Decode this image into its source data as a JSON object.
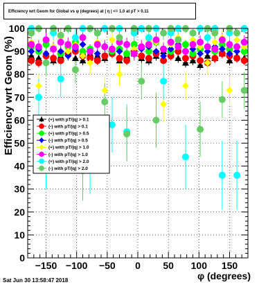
{
  "title": "Efficiency wrt Geom for Global vs φ (degrees) at | η | <= 1.0 at pT > 0.11",
  "datestamp": "Sat Jun 30 13:58:47 2018",
  "chart_data": {
    "type": "scatter",
    "title": "Efficiency wrt Geom for Global vs φ (degrees) at | η | <= 1.0 at pT > 0.11",
    "xlabel": "φ (degrees)",
    "ylabel": "Efficiency wrt Geom (%)",
    "xlim": [
      -180,
      180
    ],
    "ylim": [
      0,
      100
    ],
    "xticks": [
      -150,
      -100,
      -50,
      0,
      50,
      100,
      150
    ],
    "xtick_labels": [
      "−150",
      "−100",
      "−50",
      "0",
      "50",
      "100",
      "150"
    ],
    "yticks": [
      0,
      10,
      20,
      30,
      40,
      50,
      60,
      70,
      80,
      90,
      100
    ],
    "grid": true,
    "legend_position": "middle-left",
    "series": [
      {
        "name": "(+) with pT/|q| > 0.1",
        "marker": "triangle",
        "color": "#000000",
        "x": [
          -174,
          -162,
          -150,
          -138,
          -126,
          -114,
          -102,
          -90,
          -78,
          -66,
          -54,
          -42,
          -30,
          -18,
          -6,
          6,
          18,
          30,
          42,
          54,
          66,
          78,
          90,
          102,
          114,
          126,
          138,
          150,
          162,
          174
        ],
        "y": [
          88,
          87,
          89,
          86,
          88,
          90,
          87,
          86,
          89,
          88,
          87,
          90,
          86,
          88,
          89,
          87,
          86,
          88,
          90,
          89,
          87,
          85,
          86,
          84,
          88,
          87,
          89,
          86,
          88,
          87
        ],
        "err": [
          2,
          2,
          2,
          2,
          2,
          2,
          2,
          2,
          2,
          2,
          2,
          2,
          2,
          2,
          2,
          2,
          2,
          2,
          2,
          2,
          2,
          2,
          2,
          2,
          2,
          2,
          2,
          2,
          2,
          2
        ]
      },
      {
        "name": "(-) with pT/|q| > 0.1",
        "marker": "circle",
        "color": "#ff0000",
        "x": [
          -174,
          -162,
          -150,
          -138,
          -126,
          -114,
          -102,
          -90,
          -78,
          -66,
          -54,
          -42,
          -30,
          -18,
          -6,
          6,
          18,
          30,
          42,
          54,
          66,
          78,
          90,
          102,
          114,
          126,
          138,
          150,
          162,
          174
        ],
        "y": [
          86,
          85,
          88,
          87,
          86,
          89,
          90,
          88,
          87,
          86,
          88,
          89,
          87,
          86,
          90,
          88,
          87,
          89,
          86,
          88,
          90,
          87,
          88,
          86,
          85,
          87,
          89,
          88,
          87,
          86
        ],
        "err": [
          2,
          2,
          2,
          2,
          2,
          2,
          2,
          2,
          2,
          2,
          2,
          2,
          2,
          2,
          2,
          2,
          2,
          2,
          2,
          2,
          2,
          2,
          2,
          2,
          2,
          2,
          2,
          2,
          2,
          2
        ]
      },
      {
        "name": "(+) with pT/|q| > 0.5",
        "marker": "circle",
        "color": "#00ff00",
        "x": [
          -174,
          -162,
          -150,
          -138,
          -126,
          -114,
          -102,
          -90,
          -78,
          -66,
          -54,
          -42,
          -30,
          -18,
          -6,
          6,
          18,
          30,
          42,
          54,
          66,
          78,
          90,
          102,
          114,
          126,
          138,
          150,
          162,
          174
        ],
        "y": [
          92,
          90,
          93,
          91,
          89,
          92,
          94,
          90,
          91,
          93,
          92,
          90,
          91,
          89,
          93,
          92,
          90,
          94,
          91,
          90,
          92,
          93,
          89,
          91,
          92,
          90,
          93,
          91,
          92,
          90
        ],
        "err": [
          2,
          2,
          2,
          2,
          2,
          2,
          2,
          2,
          2,
          2,
          2,
          2,
          2,
          2,
          2,
          2,
          2,
          2,
          2,
          2,
          2,
          2,
          2,
          2,
          2,
          2,
          2,
          2,
          2,
          2
        ]
      },
      {
        "name": "(-) with pT/|q| > 0.5",
        "marker": "diamond",
        "color": "#0000ff",
        "x": [
          -174,
          -162,
          -150,
          -138,
          -126,
          -114,
          -102,
          -90,
          -78,
          -66,
          -54,
          -42,
          -30,
          -18,
          -6,
          6,
          18,
          30,
          42,
          54,
          66,
          78,
          90,
          102,
          114,
          126,
          138,
          150,
          162,
          174
        ],
        "y": [
          90,
          91,
          89,
          92,
          90,
          88,
          91,
          93,
          90,
          89,
          92,
          91,
          90,
          93,
          89,
          91,
          92,
          90,
          88,
          91,
          93,
          90,
          91,
          89,
          90,
          92,
          91,
          89,
          90,
          92
        ],
        "err": [
          2,
          2,
          2,
          2,
          2,
          2,
          2,
          2,
          2,
          2,
          2,
          2,
          2,
          2,
          2,
          2,
          2,
          2,
          2,
          2,
          2,
          2,
          2,
          2,
          2,
          2,
          2,
          2,
          2,
          2
        ]
      },
      {
        "name": "(+) with pT/|q| > 1.0",
        "marker": "diamond",
        "color": "#ffff00",
        "x": [
          -174,
          -162,
          -150,
          -138,
          -126,
          -114,
          -102,
          -90,
          -78,
          -66,
          -54,
          -42,
          -30,
          -18,
          -6,
          6,
          18,
          30,
          42,
          54,
          66,
          78,
          90,
          102,
          114,
          126,
          138,
          150,
          162,
          174
        ],
        "y": [
          94,
          75,
          95,
          92,
          96,
          90,
          93,
          88,
          85,
          94,
          73,
          95,
          80,
          93,
          91,
          92,
          95,
          94,
          67,
          93,
          96,
          75,
          95,
          92,
          85,
          94,
          96,
          73,
          95,
          92
        ],
        "err": [
          3,
          5,
          3,
          3,
          3,
          3,
          3,
          3,
          5,
          3,
          6,
          3,
          5,
          3,
          3,
          3,
          3,
          3,
          8,
          3,
          3,
          6,
          3,
          3,
          5,
          3,
          3,
          6,
          3,
          3
        ]
      },
      {
        "name": "(-) with pT/|q| > 1.0",
        "marker": "circle",
        "color": "#ff00ff",
        "x": [
          -174,
          -162,
          -150,
          -138,
          -126,
          -114,
          -102,
          -90,
          -78,
          -66,
          -54,
          -42,
          -30,
          -18,
          -6,
          6,
          18,
          30,
          42,
          54,
          66,
          78,
          90,
          102,
          114,
          126,
          138,
          150,
          162,
          174
        ],
        "y": [
          93,
          92,
          95,
          91,
          94,
          93,
          92,
          96,
          90,
          93,
          92,
          91,
          94,
          93,
          89,
          92,
          93,
          95,
          91,
          94,
          92,
          90,
          93,
          94,
          92,
          91,
          95,
          93,
          92,
          94
        ],
        "err": [
          3,
          3,
          3,
          3,
          3,
          3,
          3,
          3,
          3,
          3,
          3,
          3,
          3,
          3,
          3,
          3,
          3,
          3,
          3,
          3,
          3,
          3,
          3,
          3,
          3,
          3,
          3,
          3,
          3,
          3
        ]
      },
      {
        "name": "(+) with pT/|q| > 2.0",
        "marker": "circle",
        "color": "#00ffff",
        "x": [
          -174,
          -162,
          -150,
          -138,
          -126,
          -114,
          -102,
          -90,
          -78,
          -66,
          -54,
          -42,
          -30,
          -18,
          -6,
          6,
          18,
          30,
          42,
          54,
          66,
          78,
          90,
          102,
          114,
          126,
          138,
          150,
          162,
          174
        ],
        "y": [
          100,
          70,
          45,
          98,
          78,
          100,
          96,
          100,
          43,
          98,
          100,
          58,
          100,
          55,
          98,
          100,
          96,
          100,
          77,
          98,
          100,
          44,
          98,
          100,
          96,
          100,
          36,
          98,
          36,
          100
        ],
        "err": [
          2,
          8,
          15,
          3,
          8,
          2,
          4,
          2,
          15,
          3,
          2,
          12,
          2,
          12,
          3,
          2,
          4,
          2,
          8,
          3,
          2,
          14,
          3,
          2,
          4,
          2,
          15,
          3,
          15,
          2
        ]
      },
      {
        "name": "(-) with pT/|q| > 2.0",
        "marker": "circle",
        "color": "#66cc66",
        "x": [
          -174,
          -162,
          -150,
          -138,
          -126,
          -114,
          -102,
          -90,
          -78,
          -66,
          -54,
          -42,
          -30,
          -18,
          -6,
          6,
          18,
          30,
          42,
          54,
          66,
          78,
          90,
          102,
          114,
          126,
          138,
          150,
          162,
          174
        ],
        "y": [
          98,
          100,
          85,
          100,
          97,
          100,
          82,
          38,
          100,
          98,
          68,
          100,
          96,
          54,
          100,
          77,
          100,
          60,
          98,
          100,
          95,
          100,
          98,
          56,
          100,
          98,
          69,
          100,
          98,
          73
        ],
        "err": [
          3,
          2,
          6,
          2,
          3,
          2,
          6,
          13,
          2,
          3,
          8,
          2,
          3,
          12,
          2,
          8,
          2,
          12,
          3,
          2,
          3,
          2,
          3,
          12,
          2,
          3,
          8,
          2,
          3,
          8
        ]
      }
    ]
  }
}
